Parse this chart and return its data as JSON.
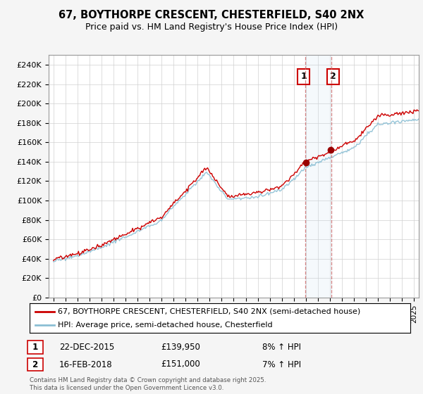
{
  "title": "67, BOYTHORPE CRESCENT, CHESTERFIELD, S40 2NX",
  "subtitle": "Price paid vs. HM Land Registry's House Price Index (HPI)",
  "ylabel_ticks": [
    "£0",
    "£20K",
    "£40K",
    "£60K",
    "£80K",
    "£100K",
    "£120K",
    "£140K",
    "£160K",
    "£180K",
    "£200K",
    "£220K",
    "£240K"
  ],
  "ytick_values": [
    0,
    20000,
    40000,
    60000,
    80000,
    100000,
    120000,
    140000,
    160000,
    180000,
    200000,
    220000,
    240000
  ],
  "ylim": [
    0,
    250000
  ],
  "sale1_date": 2015.97,
  "sale1_price": 139950,
  "sale1_label": "1",
  "sale2_date": 2018.12,
  "sale2_price": 151000,
  "sale2_label": "2",
  "line_color_red": "#cc0000",
  "line_color_blue": "#8bbfd4",
  "marker_color_red": "#990000",
  "legend_label_red": "67, BOYTHORPE CRESCENT, CHESTERFIELD, S40 2NX (semi-detached house)",
  "legend_label_blue": "HPI: Average price, semi-detached house, Chesterfield",
  "annotation1_date": "22-DEC-2015",
  "annotation1_price": "£139,950",
  "annotation1_pct": "8% ↑ HPI",
  "annotation2_date": "16-FEB-2018",
  "annotation2_price": "£151,000",
  "annotation2_pct": "7% ↑ HPI",
  "footnote": "Contains HM Land Registry data © Crown copyright and database right 2025.\nThis data is licensed under the Open Government Licence v3.0.",
  "bg_color": "#f5f5f5",
  "plot_bg_color": "#ffffff",
  "sale_highlight_color": "#cce0f0",
  "label_box_color": "#cc0000"
}
